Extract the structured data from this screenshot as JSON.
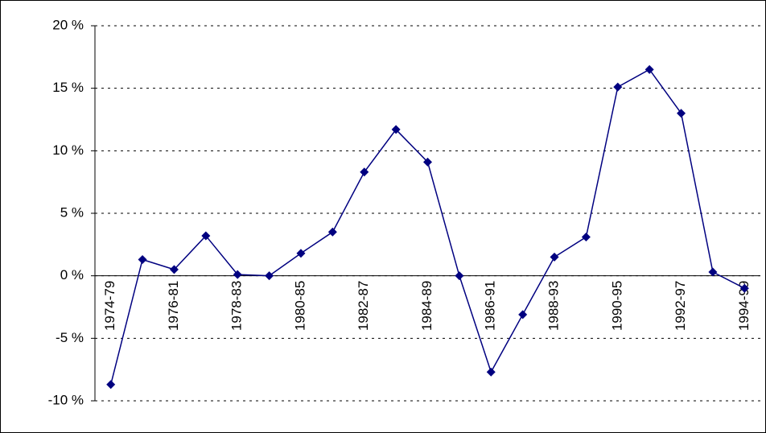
{
  "chart_data": {
    "type": "line",
    "categories": [
      "1974-79",
      null,
      "1976-81",
      null,
      "1978-83",
      null,
      "1980-85",
      null,
      "1982-87",
      null,
      "1984-89",
      null,
      "1986-91",
      null,
      "1988-93",
      null,
      "1990-95",
      null,
      "1992-97",
      null,
      "1994-99"
    ],
    "series": [
      {
        "color": "#000080",
        "values": [
          -8.7,
          1.3,
          0.5,
          3.2,
          0.1,
          0.0,
          1.8,
          3.5,
          8.3,
          11.7,
          9.1,
          0.0,
          -7.7,
          -3.1,
          1.5,
          3.1,
          15.1,
          16.5,
          13.0,
          0.3,
          -1.0
        ]
      }
    ],
    "ylim": [
      -10,
      20
    ],
    "yticks": [
      {
        "value": -10,
        "label": "-10 %"
      },
      {
        "value": -5,
        "label": "-5 %"
      },
      {
        "value": 0,
        "label": "0 %"
      },
      {
        "value": 5,
        "label": "5 %"
      },
      {
        "value": 10,
        "label": "10 %"
      },
      {
        "value": 15,
        "label": "15 %"
      },
      {
        "value": 20,
        "label": "20 %"
      }
    ],
    "grid": true
  }
}
